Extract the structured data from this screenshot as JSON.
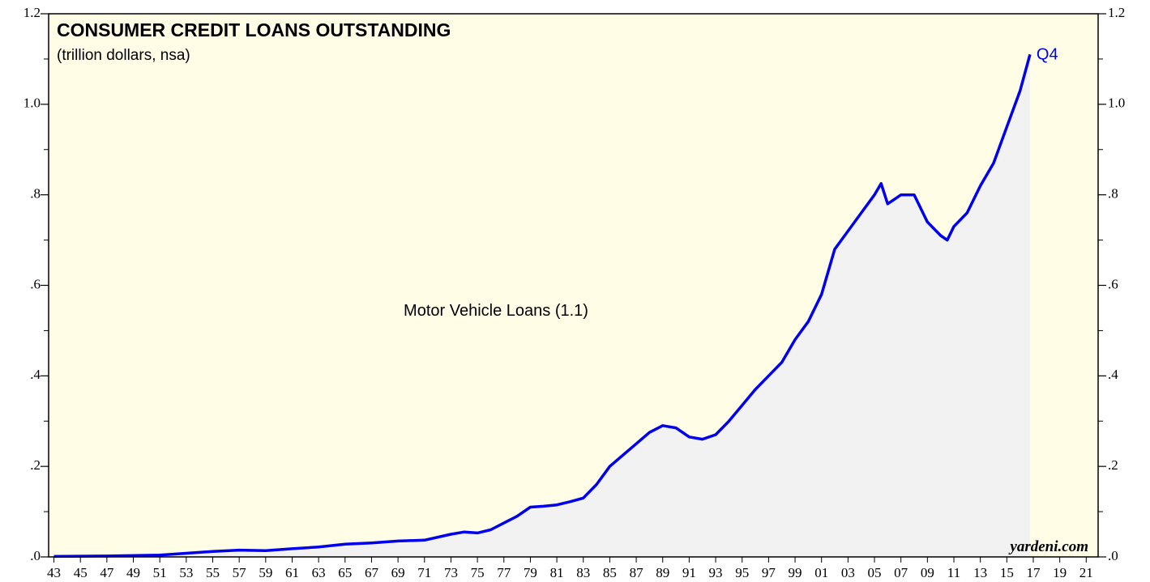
{
  "chart_data": {
    "type": "area",
    "title": "CONSUMER CREDIT LOANS OUTSTANDING",
    "subtitle": "(trillion dollars, nsa)",
    "annotations": [
      "Motor Vehicle Loans (1.1)",
      "Q4"
    ],
    "source": "yardeni.com",
    "series": [
      {
        "name": "Motor Vehicle Loans",
        "color": "#0000ee",
        "fill": "#f2f2f2",
        "x": [
          1943,
          1947,
          1951,
          1953,
          1955,
          1957,
          1959,
          1961,
          1963,
          1965,
          1967,
          1969,
          1971,
          1973,
          1974,
          1975,
          1976,
          1977,
          1978,
          1979,
          1980,
          1981,
          1982,
          1983,
          1984,
          1985,
          1986,
          1987,
          1988,
          1989,
          1990,
          1991,
          1992,
          1993,
          1994,
          1995,
          1996,
          1997,
          1998,
          1999,
          2000,
          2001,
          2002,
          2003,
          2004,
          2005,
          2005.5,
          2006,
          2006.5,
          2007,
          2008,
          2009,
          2010,
          2010.5,
          2011,
          2012,
          2013,
          2014,
          2015,
          2016,
          2016.75
        ],
        "values": [
          0.001,
          0.002,
          0.004,
          0.008,
          0.012,
          0.015,
          0.014,
          0.018,
          0.022,
          0.028,
          0.031,
          0.035,
          0.037,
          0.05,
          0.055,
          0.053,
          0.06,
          0.075,
          0.09,
          0.11,
          0.112,
          0.115,
          0.122,
          0.13,
          0.16,
          0.2,
          0.225,
          0.25,
          0.275,
          0.29,
          0.285,
          0.265,
          0.26,
          0.27,
          0.3,
          0.335,
          0.37,
          0.4,
          0.43,
          0.48,
          0.52,
          0.58,
          0.68,
          0.72,
          0.76,
          0.8,
          0.825,
          0.78,
          0.79,
          0.8,
          0.8,
          0.74,
          0.71,
          0.7,
          0.73,
          0.76,
          0.82,
          0.87,
          0.95,
          1.03,
          1.11
        ]
      }
    ],
    "xlim": [
      1942.6,
      2021.9
    ],
    "xticks": [
      {
        "value": 1943,
        "label": "43"
      },
      {
        "value": 1945,
        "label": "45"
      },
      {
        "value": 1947,
        "label": "47"
      },
      {
        "value": 1949,
        "label": "49"
      },
      {
        "value": 1951,
        "label": "51"
      },
      {
        "value": 1953,
        "label": "53"
      },
      {
        "value": 1955,
        "label": "55"
      },
      {
        "value": 1957,
        "label": "57"
      },
      {
        "value": 1959,
        "label": "59"
      },
      {
        "value": 1961,
        "label": "61"
      },
      {
        "value": 1963,
        "label": "63"
      },
      {
        "value": 1965,
        "label": "65"
      },
      {
        "value": 1967,
        "label": "67"
      },
      {
        "value": 1969,
        "label": "69"
      },
      {
        "value": 1971,
        "label": "71"
      },
      {
        "value": 1973,
        "label": "73"
      },
      {
        "value": 1975,
        "label": "75"
      },
      {
        "value": 1977,
        "label": "77"
      },
      {
        "value": 1979,
        "label": "79"
      },
      {
        "value": 1981,
        "label": "81"
      },
      {
        "value": 1983,
        "label": "83"
      },
      {
        "value": 1985,
        "label": "85"
      },
      {
        "value": 1987,
        "label": "87"
      },
      {
        "value": 1989,
        "label": "89"
      },
      {
        "value": 1991,
        "label": "91"
      },
      {
        "value": 1993,
        "label": "93"
      },
      {
        "value": 1995,
        "label": "95"
      },
      {
        "value": 1997,
        "label": "97"
      },
      {
        "value": 1999,
        "label": "99"
      },
      {
        "value": 2001,
        "label": "01"
      },
      {
        "value": 2003,
        "label": "03"
      },
      {
        "value": 2005,
        "label": "05"
      },
      {
        "value": 2007,
        "label": "07"
      },
      {
        "value": 2009,
        "label": "09"
      },
      {
        "value": 2011,
        "label": "11"
      },
      {
        "value": 2013,
        "label": "13"
      },
      {
        "value": 2015,
        "label": "15"
      },
      {
        "value": 2017,
        "label": "17"
      },
      {
        "value": 2019,
        "label": "19"
      },
      {
        "value": 2021,
        "label": "21"
      }
    ],
    "ylim": [
      0,
      1.2
    ],
    "yticks": [
      {
        "value": 0,
        "label": ".0"
      },
      {
        "value": 0.2,
        "label": ".2"
      },
      {
        "value": 0.4,
        "label": ".4"
      },
      {
        "value": 0.6,
        "label": ".6"
      },
      {
        "value": 0.8,
        "label": ".8"
      },
      {
        "value": 1.0,
        "label": "1.0"
      },
      1.2
    ],
    "yminorticks": [
      0.1,
      0.3,
      0.5,
      0.7,
      0.9,
      1.1
    ],
    "y2lim": [
      0,
      1.2
    ],
    "y2ticks": [
      {
        "value": 0,
        "label": ".0"
      },
      {
        "value": 0.2,
        "label": ".2"
      },
      {
        "value": 0.4,
        "label": ".4"
      },
      {
        "value": 0.6,
        "label": ".6"
      },
      {
        "value": 0.8,
        "label": ".8"
      },
      {
        "value": 1.0,
        "label": "1.0"
      },
      1.2
    ],
    "background": "#fffde6",
    "grid": false
  }
}
